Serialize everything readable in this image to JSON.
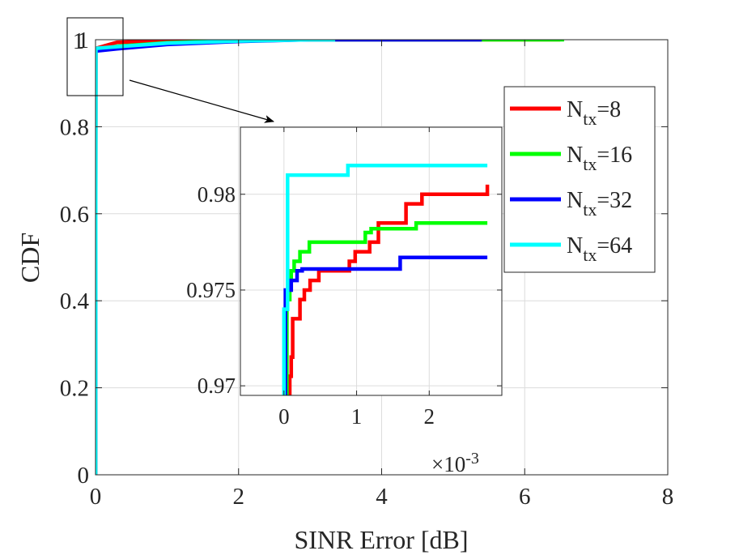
{
  "chart_data": [
    {
      "id": "main",
      "type": "line",
      "xlabel": "SINR Error [dB]",
      "ylabel": "CDF",
      "xlim": [
        0,
        8
      ],
      "ylim": [
        0,
        1
      ],
      "xticks": [
        0,
        2,
        4,
        6,
        8
      ],
      "yticks": [
        0,
        0.2,
        0.4,
        0.6,
        0.8,
        1
      ],
      "xtick_labels": [
        "0",
        "2",
        "4",
        "6",
        "8"
      ],
      "ytick_labels": [
        "0",
        "0.2",
        "0.4",
        "0.6",
        "0.8",
        "1"
      ],
      "grid": true,
      "series": [
        {
          "name": "N_tx=8",
          "color": "#ff0000",
          "x": [
            0,
            0.005,
            0.3,
            1.0,
            2.0,
            6.5
          ],
          "y": [
            0,
            0.98,
            0.994,
            0.998,
            1.0,
            1.0
          ]
        },
        {
          "name": "N_tx=16",
          "color": "#00ff00",
          "x": [
            0,
            0.005,
            0.3,
            1.0,
            2.0,
            3.0,
            6.55
          ],
          "y": [
            0,
            0.976,
            0.985,
            0.993,
            0.998,
            1.0,
            1.0
          ]
        },
        {
          "name": "N_tx=32",
          "color": "#0000ff",
          "x": [
            0,
            0.005,
            0.3,
            1.0,
            2.0,
            3.0,
            5.4
          ],
          "y": [
            0,
            0.974,
            0.979,
            0.989,
            0.996,
            1.0,
            1.0
          ]
        },
        {
          "name": "N_tx=64",
          "color": "#00ffff",
          "x": [
            0,
            0.005,
            0.3,
            1.0,
            2.0,
            3.0,
            3.35
          ],
          "y": [
            0,
            0.98,
            0.984,
            0.992,
            0.997,
            1.0,
            1.0
          ]
        }
      ],
      "zoom_box_label": "1"
    },
    {
      "id": "inset",
      "type": "line",
      "xlim": [
        -0.6,
        3.0
      ],
      "ylim": [
        0.9695,
        0.9835
      ],
      "xticks": [
        0,
        1,
        2
      ],
      "yticks": [
        0.97,
        0.975,
        0.98
      ],
      "xtick_labels": [
        "0",
        "1",
        "2"
      ],
      "ytick_labels": [
        "0.97",
        "0.975",
        "0.98"
      ],
      "x_exponent": "×10",
      "x_exponent_power": "-3",
      "grid": true,
      "series": [
        {
          "name": "N_tx=8",
          "color": "#ff0000",
          "x": [
            0.08,
            0.08,
            0.1,
            0.1,
            0.12,
            0.12,
            0.22,
            0.22,
            0.28,
            0.28,
            0.36,
            0.36,
            0.48,
            0.48,
            0.9,
            0.9,
            0.98,
            0.98,
            1.18,
            1.18,
            1.3,
            1.3,
            1.68,
            1.68,
            1.9,
            1.9,
            2.8,
            2.8
          ],
          "y": [
            0.9695,
            0.9705,
            0.9705,
            0.9715,
            0.9715,
            0.9735,
            0.9735,
            0.9745,
            0.9745,
            0.975,
            0.975,
            0.9755,
            0.9755,
            0.976,
            0.976,
            0.9765,
            0.9765,
            0.977,
            0.977,
            0.9775,
            0.9775,
            0.9785,
            0.9785,
            0.9795,
            0.9795,
            0.98,
            0.98,
            0.9805
          ]
        },
        {
          "name": "N_tx=16",
          "color": "#00ff00",
          "x": [
            0.04,
            0.04,
            0.08,
            0.08,
            0.1,
            0.1,
            0.14,
            0.14,
            0.22,
            0.22,
            0.35,
            0.35,
            1.12,
            1.12,
            1.2,
            1.2,
            1.82,
            1.82,
            2.8
          ],
          "y": [
            0.9695,
            0.9745,
            0.9745,
            0.9755,
            0.9755,
            0.976,
            0.976,
            0.9765,
            0.9765,
            0.977,
            0.977,
            0.9775,
            0.9775,
            0.978,
            0.978,
            0.9782,
            0.9782,
            0.9785,
            0.9785
          ]
        },
        {
          "name": "N_tx=32",
          "color": "#0000ff",
          "x": [
            0.02,
            0.02,
            0.1,
            0.1,
            0.18,
            0.18,
            0.25,
            0.25,
            1.6,
            1.6,
            2.8
          ],
          "y": [
            0.9695,
            0.975,
            0.975,
            0.9755,
            0.9755,
            0.976,
            0.976,
            0.9761,
            0.9761,
            0.9767,
            0.9767
          ]
        },
        {
          "name": "N_tx=64",
          "color": "#00ffff",
          "x": [
            0.0,
            0.0,
            0.05,
            0.05,
            0.88,
            0.88,
            2.8
          ],
          "y": [
            0.9695,
            0.974,
            0.974,
            0.981,
            0.981,
            0.9815,
            0.9815
          ]
        }
      ]
    }
  ],
  "legend": {
    "location": "right",
    "items": [
      {
        "base": "N",
        "sub": "tx",
        "suffix": "=8",
        "color": "#ff0000"
      },
      {
        "base": "N",
        "sub": "tx",
        "suffix": "=16",
        "color": "#00ff00"
      },
      {
        "base": "N",
        "sub": "tx",
        "suffix": "=32",
        "color": "#0000ff"
      },
      {
        "base": "N",
        "sub": "tx",
        "suffix": "=64",
        "color": "#00ffff"
      }
    ]
  }
}
